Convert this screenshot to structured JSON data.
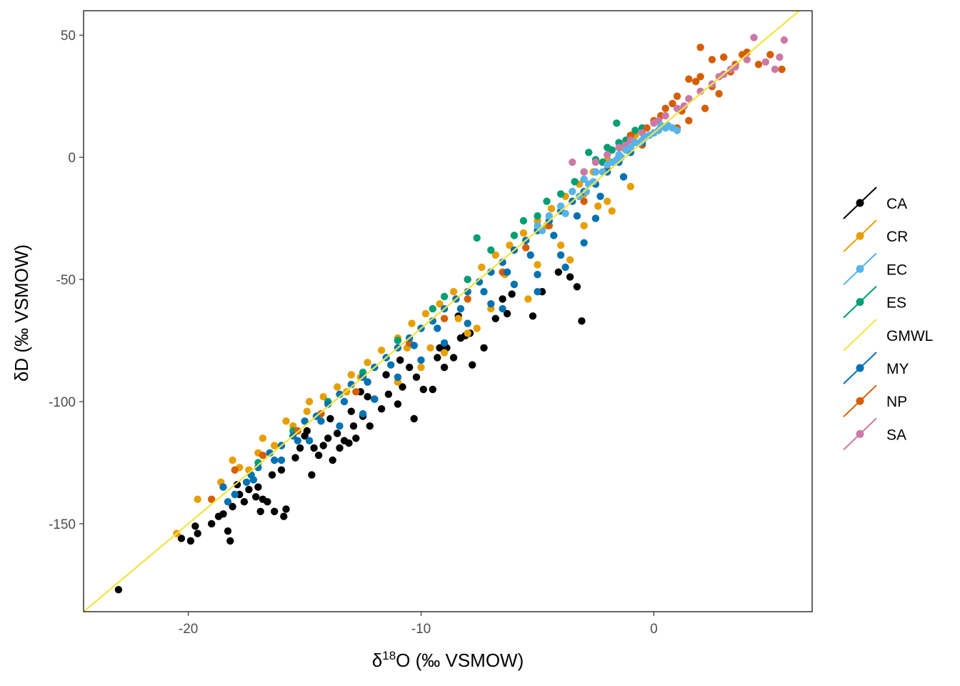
{
  "chart_data": {
    "type": "scatter",
    "xlabel": {
      "base": "δ",
      "sup": "18",
      "rest": "O (‰ VSMOW)"
    },
    "ylabel": "δD (‰ VSMOW)",
    "xlim": [
      -24.5,
      6.8
    ],
    "ylim": [
      -186,
      60
    ],
    "x_ticks": [
      {
        "value": -20,
        "label": "-20"
      },
      {
        "value": -10,
        "label": "-10"
      },
      {
        "value": 0,
        "label": "0"
      }
    ],
    "y_ticks": [
      {
        "value": 50,
        "label": "50"
      },
      {
        "value": 0,
        "label": "0"
      },
      {
        "value": -50,
        "label": "-50"
      },
      {
        "value": -100,
        "label": "-100"
      },
      {
        "value": -150,
        "label": "-150"
      }
    ],
    "grid": false,
    "legend_position": "right",
    "reference_line": {
      "name": "GMWL",
      "slope": 8,
      "intercept": 10,
      "color": "#F0E442"
    },
    "series": [
      {
        "name": "CA",
        "color": "#000000"
      },
      {
        "name": "CR",
        "color": "#E69F00"
      },
      {
        "name": "EC",
        "color": "#56B4E9"
      },
      {
        "name": "ES",
        "color": "#009E73"
      },
      {
        "name": "GMWL",
        "color": "#F0E442"
      },
      {
        "name": "MY",
        "color": "#0072B2"
      },
      {
        "name": "NP",
        "color": "#D55E00"
      },
      {
        "name": "SA",
        "color": "#CC79A7"
      }
    ],
    "points": {
      "CA": [
        [
          -23.0,
          -177
        ],
        [
          -20.3,
          -156
        ],
        [
          -19.9,
          -157
        ],
        [
          -19.7,
          -151
        ],
        [
          -19.6,
          -154
        ],
        [
          -19.0,
          -150
        ],
        [
          -18.7,
          -147
        ],
        [
          -18.5,
          -146
        ],
        [
          -18.3,
          -153
        ],
        [
          -18.2,
          -157
        ],
        [
          -18.1,
          -143
        ],
        [
          -17.9,
          -134
        ],
        [
          -17.6,
          -141
        ],
        [
          -17.4,
          -136
        ],
        [
          -17.1,
          -139
        ],
        [
          -17.0,
          -135
        ],
        [
          -16.9,
          -145
        ],
        [
          -16.8,
          -140
        ],
        [
          -16.6,
          -141
        ],
        [
          -16.3,
          -145
        ],
        [
          -15.9,
          -147
        ],
        [
          -15.8,
          -144
        ],
        [
          -16.0,
          -128
        ],
        [
          -15.4,
          -123
        ],
        [
          -15.0,
          -114
        ],
        [
          -14.7,
          -130
        ],
        [
          -14.6,
          -119
        ],
        [
          -14.4,
          -122
        ],
        [
          -14.2,
          -118
        ],
        [
          -14.0,
          -115
        ],
        [
          -13.8,
          -124
        ],
        [
          -13.6,
          -113
        ],
        [
          -13.5,
          -119
        ],
        [
          -13.3,
          -116
        ],
        [
          -13.1,
          -117
        ],
        [
          -12.9,
          -110
        ],
        [
          -12.8,
          -115
        ],
        [
          -12.5,
          -106
        ],
        [
          -12.2,
          -110
        ],
        [
          -12.0,
          -99
        ],
        [
          -11.7,
          -103
        ],
        [
          -11.4,
          -97
        ],
        [
          -11.0,
          -101
        ],
        [
          -10.8,
          -94
        ],
        [
          -10.3,
          -107
        ],
        [
          -10.2,
          -90
        ],
        [
          -9.9,
          -95
        ],
        [
          -9.5,
          -95
        ],
        [
          -9.3,
          -82
        ],
        [
          -9.0,
          -86
        ],
        [
          -8.9,
          -78
        ],
        [
          -8.6,
          -82
        ],
        [
          -8.4,
          -65
        ],
        [
          -8.1,
          -73
        ],
        [
          -7.8,
          -85
        ],
        [
          -7.3,
          -78
        ],
        [
          -6.8,
          -66
        ],
        [
          -6.5,
          -58
        ],
        [
          -6.1,
          -56
        ],
        [
          -5.2,
          -65
        ],
        [
          -4.8,
          -55
        ],
        [
          -4.1,
          -47
        ],
        [
          -3.6,
          -49
        ],
        [
          -3.3,
          -53
        ],
        [
          -3.1,
          -67
        ],
        [
          -10.9,
          -83
        ],
        [
          -12.6,
          -96
        ],
        [
          -14.9,
          -112
        ],
        [
          -13.9,
          -107
        ],
        [
          -11.5,
          -89
        ],
        [
          -9.2,
          -78
        ],
        [
          -7.9,
          -72
        ],
        [
          -6.3,
          -64
        ],
        [
          -16.4,
          -130
        ],
        [
          -17.8,
          -138
        ],
        [
          -15.2,
          -119
        ],
        [
          -12.3,
          -98
        ],
        [
          -10.5,
          -86
        ],
        [
          -8.3,
          -74
        ],
        [
          -13.0,
          -104
        ]
      ],
      "CR": [
        [
          -20.5,
          -154
        ],
        [
          -19.6,
          -140
        ],
        [
          -18.6,
          -133
        ],
        [
          -17.8,
          -127
        ],
        [
          -17.0,
          -121
        ],
        [
          -16.3,
          -118
        ],
        [
          -15.5,
          -110
        ],
        [
          -14.9,
          -104
        ],
        [
          -14.2,
          -98
        ],
        [
          -13.6,
          -94
        ],
        [
          -13.0,
          -89
        ],
        [
          -12.3,
          -84
        ],
        [
          -11.7,
          -79
        ],
        [
          -11.0,
          -74
        ],
        [
          -10.4,
          -68
        ],
        [
          -9.8,
          -64
        ],
        [
          -9.2,
          -60
        ],
        [
          -8.6,
          -55
        ],
        [
          -8.0,
          -50
        ],
        [
          -7.4,
          -45
        ],
        [
          -6.8,
          -40
        ],
        [
          -6.2,
          -36
        ],
        [
          -5.6,
          -31
        ],
        [
          -5.0,
          -26
        ],
        [
          -4.4,
          -21
        ],
        [
          -3.8,
          -16
        ],
        [
          -3.2,
          -11
        ],
        [
          -2.6,
          -6
        ],
        [
          -2.0,
          -1
        ],
        [
          -1.4,
          4
        ],
        [
          -0.8,
          9
        ],
        [
          -11.0,
          -92
        ],
        [
          -10.0,
          -86
        ],
        [
          -9.0,
          -80
        ],
        [
          -8.0,
          -72
        ],
        [
          -7.0,
          -62
        ],
        [
          -6.0,
          -52
        ],
        [
          -5.0,
          -44
        ],
        [
          -4.0,
          -36
        ],
        [
          -3.0,
          -28
        ],
        [
          -2.0,
          -18
        ],
        [
          -1.0,
          -12
        ],
        [
          -3.6,
          -42
        ],
        [
          -5.4,
          -58
        ],
        [
          -7.6,
          -70
        ],
        [
          -9.6,
          -78
        ],
        [
          -12.6,
          -90
        ],
        [
          -14.8,
          -100
        ],
        [
          -16.8,
          -115
        ],
        [
          -2.4,
          -20
        ],
        [
          -1.8,
          -22
        ],
        [
          -3.0,
          -15
        ],
        [
          -4.6,
          -28
        ],
        [
          -6.4,
          -48
        ],
        [
          -8.4,
          -66
        ],
        [
          -10.6,
          -78
        ],
        [
          -13.2,
          -96
        ],
        [
          -15.8,
          -108
        ],
        [
          -17.4,
          -128
        ],
        [
          -18.1,
          -124
        ]
      ],
      "EC": [
        [
          -3.5,
          -14
        ],
        [
          -3.0,
          -9
        ],
        [
          -2.5,
          -6
        ],
        [
          -2.0,
          -3
        ],
        [
          -1.5,
          1
        ],
        [
          -1.0,
          4
        ],
        [
          -0.5,
          7
        ],
        [
          0.0,
          10
        ],
        [
          0.5,
          12
        ],
        [
          1.0,
          11
        ],
        [
          -2.8,
          -11
        ],
        [
          -2.2,
          -6
        ],
        [
          -1.8,
          -2
        ],
        [
          -1.2,
          3
        ],
        [
          -0.8,
          6
        ],
        [
          -0.2,
          9
        ],
        [
          0.3,
          13
        ],
        [
          0.8,
          12
        ],
        [
          -4.0,
          -20
        ],
        [
          -4.5,
          -24
        ],
        [
          -5.0,
          -28
        ],
        [
          -3.2,
          -16
        ],
        [
          -2.6,
          -10
        ],
        [
          -1.6,
          -1
        ],
        [
          -0.6,
          6
        ],
        [
          0.2,
          11
        ],
        [
          -4.8,
          -30
        ],
        [
          -3.8,
          -23
        ],
        [
          -2.9,
          -14
        ],
        [
          -1.4,
          0
        ],
        [
          -0.4,
          8
        ],
        [
          0.6,
          13
        ]
      ],
      "ES": [
        [
          -17.0,
          -125
        ],
        [
          -15.5,
          -112
        ],
        [
          -14.0,
          -100
        ],
        [
          -12.5,
          -88
        ],
        [
          -11.0,
          -75
        ],
        [
          -9.5,
          -62
        ],
        [
          -8.0,
          -50
        ],
        [
          -7.0,
          -38
        ],
        [
          -6.0,
          -32
        ],
        [
          -5.0,
          -24
        ],
        [
          -4.0,
          -15
        ],
        [
          -3.0,
          -6
        ],
        [
          -2.5,
          -1
        ],
        [
          -2.0,
          4
        ],
        [
          -1.5,
          6
        ],
        [
          -1.0,
          9
        ],
        [
          -0.5,
          12
        ],
        [
          -2.2,
          -2
        ],
        [
          -1.8,
          3
        ],
        [
          -1.2,
          7
        ],
        [
          -3.4,
          -10
        ],
        [
          -4.6,
          -18
        ],
        [
          -5.6,
          -26
        ],
        [
          -7.6,
          -33
        ],
        [
          -1.6,
          14
        ],
        [
          -2.8,
          2
        ],
        [
          -0.8,
          11
        ],
        [
          -9.0,
          -57
        ]
      ],
      "MY": [
        [
          -18.5,
          -135
        ],
        [
          -18.0,
          -138
        ],
        [
          -17.5,
          -133
        ],
        [
          -17.0,
          -127
        ],
        [
          -16.5,
          -121
        ],
        [
          -16.0,
          -118
        ],
        [
          -15.5,
          -114
        ],
        [
          -15.0,
          -108
        ],
        [
          -14.5,
          -106
        ],
        [
          -14.0,
          -101
        ],
        [
          -13.5,
          -97
        ],
        [
          -13.0,
          -93
        ],
        [
          -12.5,
          -90
        ],
        [
          -12.0,
          -86
        ],
        [
          -11.5,
          -82
        ],
        [
          -11.0,
          -78
        ],
        [
          -10.5,
          -74
        ],
        [
          -10.0,
          -70
        ],
        [
          -9.5,
          -67
        ],
        [
          -9.0,
          -62
        ],
        [
          -8.5,
          -58
        ],
        [
          -8.0,
          -55
        ],
        [
          -7.5,
          -51
        ],
        [
          -7.0,
          -47
        ],
        [
          -6.5,
          -43
        ],
        [
          -6.0,
          -38
        ],
        [
          -5.5,
          -34
        ],
        [
          -5.0,
          -30
        ],
        [
          -4.5,
          -26
        ],
        [
          -4.0,
          -22
        ],
        [
          -3.5,
          -18
        ],
        [
          -3.0,
          -14
        ],
        [
          -2.5,
          -11
        ],
        [
          -2.0,
          -6
        ],
        [
          -1.5,
          -2
        ],
        [
          -1.0,
          2
        ],
        [
          -0.5,
          6
        ],
        [
          -18.3,
          -141
        ],
        [
          -17.3,
          -130
        ],
        [
          -16.3,
          -124
        ],
        [
          -15.3,
          -116
        ],
        [
          -14.3,
          -108
        ],
        [
          -13.3,
          -100
        ],
        [
          -12.3,
          -92
        ],
        [
          -11.3,
          -85
        ],
        [
          -10.3,
          -77
        ],
        [
          -9.3,
          -70
        ],
        [
          -8.3,
          -62
        ],
        [
          -7.3,
          -55
        ],
        [
          -6.3,
          -47
        ],
        [
          -5.3,
          -40
        ],
        [
          -4.3,
          -32
        ],
        [
          -3.3,
          -24
        ],
        [
          -2.3,
          -16
        ],
        [
          -1.3,
          -8
        ],
        [
          -12.0,
          -99
        ],
        [
          -11.0,
          -90
        ],
        [
          -10.0,
          -83
        ],
        [
          -9.0,
          -76
        ],
        [
          -8.0,
          -68
        ],
        [
          -7.0,
          -60
        ],
        [
          -6.0,
          -52
        ],
        [
          -5.0,
          -48
        ],
        [
          -4.0,
          -40
        ],
        [
          -3.0,
          -35
        ],
        [
          -2.5,
          -25
        ],
        [
          -6.5,
          -62
        ],
        [
          -5.0,
          -55
        ],
        [
          -3.8,
          -45
        ],
        [
          -12.5,
          -105
        ],
        [
          -13.5,
          -110
        ],
        [
          -14.8,
          -116
        ],
        [
          -16.0,
          -124
        ],
        [
          -17.2,
          -132
        ]
      ],
      "NP": [
        [
          -18.0,
          -128
        ],
        [
          -16.8,
          -122
        ],
        [
          -15.3,
          -112
        ],
        [
          -14.3,
          -105
        ],
        [
          -12.3,
          -92
        ],
        [
          -10.5,
          -76
        ],
        [
          -9.0,
          -66
        ],
        [
          -8.0,
          -58
        ],
        [
          -6.5,
          -47
        ],
        [
          -5.5,
          -37
        ],
        [
          -4.5,
          -28
        ],
        [
          -3.0,
          -18
        ],
        [
          -2.0,
          -5
        ],
        [
          -0.5,
          5
        ],
        [
          0.0,
          15
        ],
        [
          0.5,
          20
        ],
        [
          1.0,
          25
        ],
        [
          1.5,
          32
        ],
        [
          2.0,
          33
        ],
        [
          2.5,
          40
        ],
        [
          3.0,
          41
        ],
        [
          3.5,
          38
        ],
        [
          4.0,
          43
        ],
        [
          5.0,
          42
        ],
        [
          5.5,
          36
        ],
        [
          2.0,
          45
        ],
        [
          1.0,
          12
        ],
        [
          1.5,
          15
        ],
        [
          2.2,
          20
        ],
        [
          2.8,
          26
        ],
        [
          3.3,
          35
        ],
        [
          1.8,
          31
        ],
        [
          0.8,
          22
        ],
        [
          0.3,
          17
        ],
        [
          -0.3,
          12
        ],
        [
          -1.0,
          9
        ],
        [
          2.5,
          29
        ],
        [
          3.8,
          42
        ],
        [
          4.5,
          38
        ],
        [
          1.2,
          19
        ],
        [
          -12.8,
          -96
        ],
        [
          -16.0,
          -118
        ],
        [
          -19.0,
          -140
        ]
      ],
      "SA": [
        [
          -3.5,
          -2
        ],
        [
          -3.0,
          -6
        ],
        [
          -2.5,
          -2
        ],
        [
          -1.5,
          4
        ],
        [
          -1.0,
          7
        ],
        [
          -0.5,
          10
        ],
        [
          0.0,
          14
        ],
        [
          0.5,
          17
        ],
        [
          1.0,
          20
        ],
        [
          1.5,
          24
        ],
        [
          2.0,
          27
        ],
        [
          2.5,
          30
        ],
        [
          3.0,
          34
        ],
        [
          3.5,
          37
        ],
        [
          4.0,
          40
        ],
        [
          4.3,
          49
        ],
        [
          4.8,
          39
        ],
        [
          5.2,
          36
        ],
        [
          5.4,
          41
        ],
        [
          5.6,
          48
        ],
        [
          -2.0,
          1
        ],
        [
          -1.2,
          5
        ],
        [
          0.2,
          15
        ],
        [
          1.3,
          21
        ],
        [
          2.8,
          33
        ],
        [
          3.3,
          36
        ]
      ]
    }
  }
}
